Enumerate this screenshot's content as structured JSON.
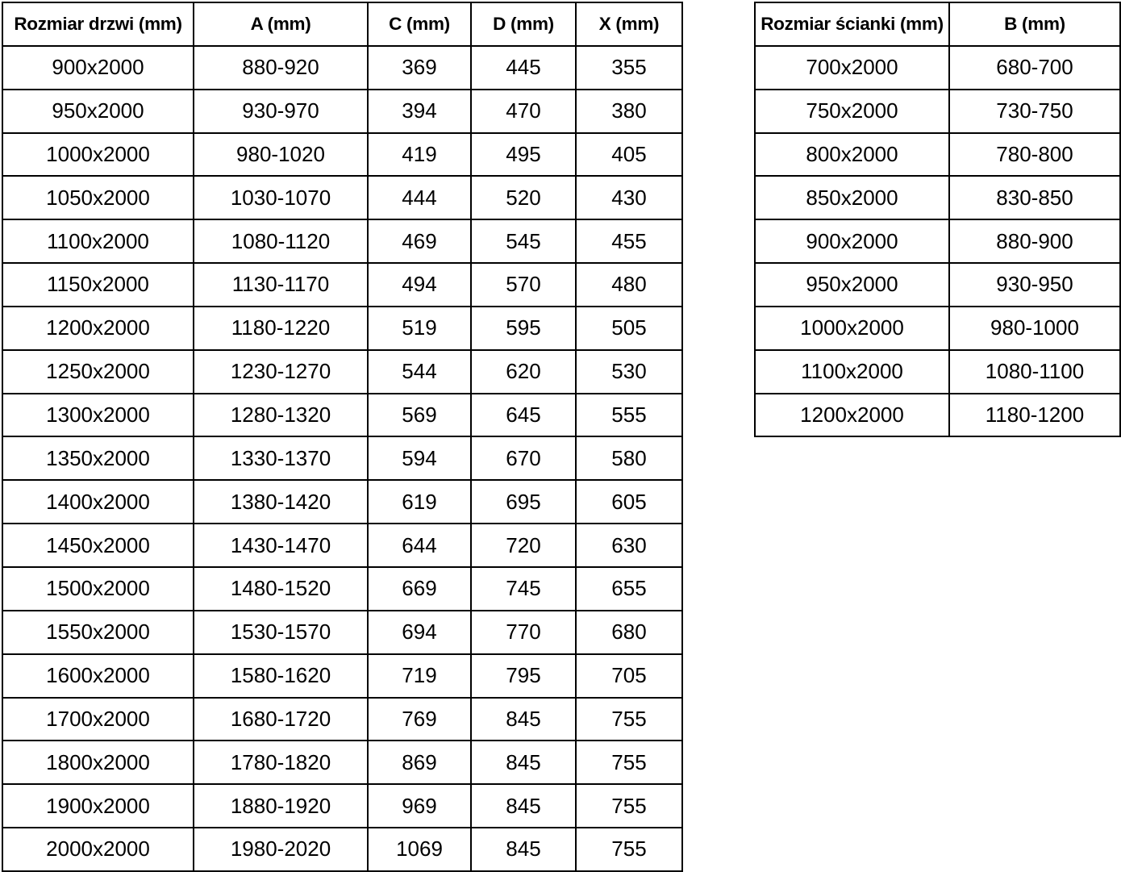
{
  "colors": {
    "border": "#000000",
    "text": "#000000",
    "background": "#ffffff"
  },
  "door_table": {
    "headers": [
      "Rozmiar drzwi (mm)",
      "A (mm)",
      "C (mm)",
      "D (mm)",
      "X (mm)"
    ],
    "rows": [
      [
        "900x2000",
        "880-920",
        "369",
        "445",
        "355"
      ],
      [
        "950x2000",
        "930-970",
        "394",
        "470",
        "380"
      ],
      [
        "1000x2000",
        "980-1020",
        "419",
        "495",
        "405"
      ],
      [
        "1050x2000",
        "1030-1070",
        "444",
        "520",
        "430"
      ],
      [
        "1100x2000",
        "1080-1120",
        "469",
        "545",
        "455"
      ],
      [
        "1150x2000",
        "1130-1170",
        "494",
        "570",
        "480"
      ],
      [
        "1200x2000",
        "1180-1220",
        "519",
        "595",
        "505"
      ],
      [
        "1250x2000",
        "1230-1270",
        "544",
        "620",
        "530"
      ],
      [
        "1300x2000",
        "1280-1320",
        "569",
        "645",
        "555"
      ],
      [
        "1350x2000",
        "1330-1370",
        "594",
        "670",
        "580"
      ],
      [
        "1400x2000",
        "1380-1420",
        "619",
        "695",
        "605"
      ],
      [
        "1450x2000",
        "1430-1470",
        "644",
        "720",
        "630"
      ],
      [
        "1500x2000",
        "1480-1520",
        "669",
        "745",
        "655"
      ],
      [
        "1550x2000",
        "1530-1570",
        "694",
        "770",
        "680"
      ],
      [
        "1600x2000",
        "1580-1620",
        "719",
        "795",
        "705"
      ],
      [
        "1700x2000",
        "1680-1720",
        "769",
        "845",
        "755"
      ],
      [
        "1800x2000",
        "1780-1820",
        "869",
        "845",
        "755"
      ],
      [
        "1900x2000",
        "1880-1920",
        "969",
        "845",
        "755"
      ],
      [
        "2000x2000",
        "1980-2020",
        "1069",
        "845",
        "755"
      ]
    ]
  },
  "wall_table": {
    "headers": [
      "Rozmiar ścianki (mm)",
      "B (mm)"
    ],
    "rows": [
      [
        "700x2000",
        "680-700"
      ],
      [
        "750x2000",
        "730-750"
      ],
      [
        "800x2000",
        "780-800"
      ],
      [
        "850x2000",
        "830-850"
      ],
      [
        "900x2000",
        "880-900"
      ],
      [
        "950x2000",
        "930-950"
      ],
      [
        "1000x2000",
        "980-1000"
      ],
      [
        "1100x2000",
        "1080-1100"
      ],
      [
        "1200x2000",
        "1180-1200"
      ]
    ]
  }
}
